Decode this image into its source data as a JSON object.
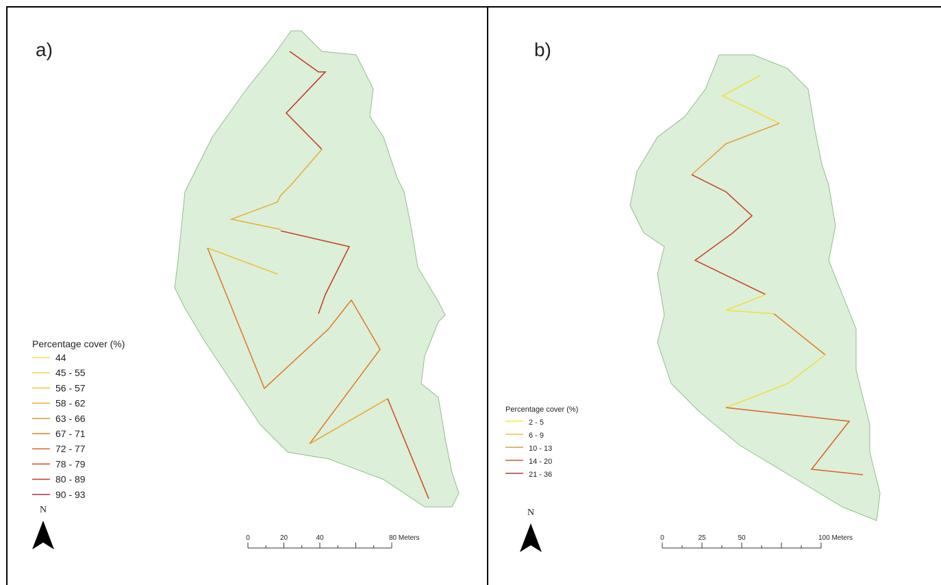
{
  "panels": [
    {
      "label": "a)",
      "legend": {
        "title": "Percentage cover (%)",
        "entries": [
          {
            "label": "44",
            "color": "#f5e44a"
          },
          {
            "label": "45 - 55",
            "color": "#f2d540"
          },
          {
            "label": "56 - 57",
            "color": "#eec23a"
          },
          {
            "label": "58 - 62",
            "color": "#eaac34"
          },
          {
            "label": "63 - 66",
            "color": "#e6952e"
          },
          {
            "label": "67 - 71",
            "color": "#e07e2a"
          },
          {
            "label": "72 - 77",
            "color": "#d86626"
          },
          {
            "label": "78 - 79",
            "color": "#d04e24"
          },
          {
            "label": "80 - 89",
            "color": "#c43a26"
          },
          {
            "label": "90 - 93",
            "color": "#c02a40"
          }
        ]
      },
      "north": "N",
      "scale": [
        "0",
        "20",
        "40",
        "80 Meters"
      ]
    },
    {
      "label": "b)",
      "legend": {
        "title": "Percentage cover (%)",
        "entries": [
          {
            "label": "2 - 5",
            "color": "#f2ea3a"
          },
          {
            "label": "6 - 9",
            "color": "#eec23a"
          },
          {
            "label": "10 - 13",
            "color": "#d6a040"
          },
          {
            "label": "14 - 20",
            "color": "#cc5a2a"
          },
          {
            "label": "21 - 36",
            "color": "#b83838"
          }
        ]
      },
      "north": "N",
      "scale": [
        "0",
        "25",
        "50",
        "100 Meters"
      ]
    }
  ]
}
